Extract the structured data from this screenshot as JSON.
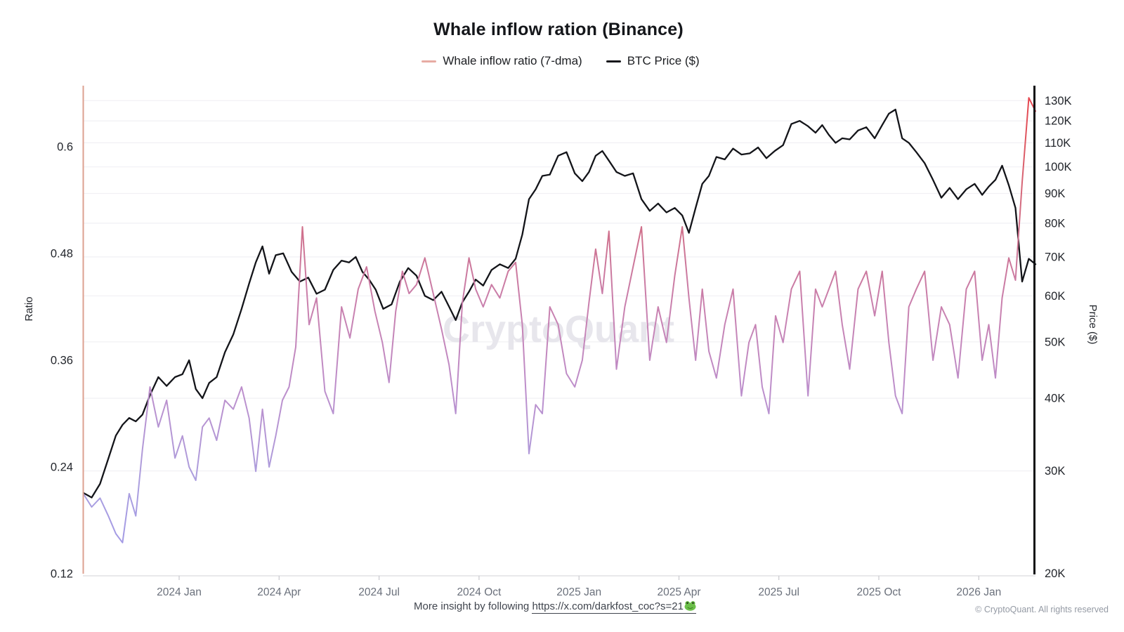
{
  "title": {
    "text": "Whale inflow ration (Binance)"
  },
  "legend": {
    "items": [
      {
        "label": "Whale inflow ratio (7-dma)",
        "color": "#e7aba3"
      },
      {
        "label": "BTC Price ($)",
        "color": "#16171b"
      }
    ]
  },
  "watermark": {
    "text": "CryptoQuant",
    "color": "#e7e6ec"
  },
  "footer": {
    "prefix": "More insight by following ",
    "link": "https://x.com/darkfost_coc?s=21",
    "link_icon": "frog-emoji",
    "copyright": "© CryptoQuant. All rights reserved"
  },
  "colors": {
    "grid": "#f1f0f4",
    "left_axis_line": "#dda190",
    "right_axis_line": "#101114",
    "bottom_axis_line": "#d9d9de",
    "tick_mark": "#c9c9ce",
    "y_tick_text": "#23262c",
    "x_tick_text": "#6a707b",
    "axis_title_text": "#23262c"
  },
  "chart_data": {
    "type": "line",
    "title": "Whale inflow ration (Binance)",
    "grid": "horizontal-only",
    "x_axis": {
      "start_month": "2023-10",
      "end_month": "2026-02",
      "tick_labels": [
        "2024 Jan",
        "2024 Apr",
        "2024 Jul",
        "2024 Oct",
        "2025 Jan",
        "2025 Apr",
        "2025 Jul",
        "2025 Oct",
        "2026 Jan"
      ]
    },
    "y_left": {
      "label": "Ratio",
      "scale": "linear",
      "range": [
        0.118,
        0.669
      ],
      "ticks": [
        {
          "label": "0.12",
          "value": 0.12
        },
        {
          "label": "0.24",
          "value": 0.24
        },
        {
          "label": "0.36",
          "value": 0.36
        },
        {
          "label": "0.48",
          "value": 0.48
        },
        {
          "label": "0.6",
          "value": 0.6
        }
      ]
    },
    "y_right": {
      "label": "Price ($)",
      "scale": "log",
      "range": [
        19.8,
        138
      ],
      "unit": "K",
      "ticks": [
        {
          "label": "20K",
          "value": 20
        },
        {
          "label": "30K",
          "value": 30
        },
        {
          "label": "40K",
          "value": 40
        },
        {
          "label": "50K",
          "value": 50
        },
        {
          "label": "60K",
          "value": 60
        },
        {
          "label": "70K",
          "value": 70
        },
        {
          "label": "80K",
          "value": 80
        },
        {
          "label": "90K",
          "value": 90
        },
        {
          "label": "100K",
          "value": 100
        },
        {
          "label": "110K",
          "value": 110
        },
        {
          "label": "120K",
          "value": 120
        },
        {
          "label": "130K",
          "value": 130
        }
      ]
    },
    "series": [
      {
        "name": "Whale inflow ratio (7-dma)",
        "axis": "left",
        "style": "gradient-by-value",
        "gradient": [
          {
            "v": 0.118,
            "c": "#9f98e8"
          },
          {
            "v": 0.22,
            "c": "#ab9fdf"
          },
          {
            "v": 0.33,
            "c": "#bd8ecb"
          },
          {
            "v": 0.42,
            "c": "#c980ae"
          },
          {
            "v": 0.48,
            "c": "#cd7596"
          },
          {
            "v": 0.54,
            "c": "#d46a7e"
          },
          {
            "v": 0.6,
            "c": "#dd5a64"
          },
          {
            "v": 0.67,
            "c": "#e84049"
          }
        ],
        "monthly_values": [
          [
            0.21,
            0.195,
            0.205,
            0.185
          ],
          [
            0.165,
            0.155,
            0.21,
            0.185,
            0.26
          ],
          [
            0.33,
            0.285,
            0.315,
            0.25
          ],
          [
            0.275,
            0.24,
            0.225,
            0.285,
            0.295
          ],
          [
            0.27,
            0.315,
            0.305,
            0.33
          ],
          [
            0.295,
            0.235,
            0.305,
            0.24,
            0.275
          ],
          [
            0.315,
            0.33,
            0.375,
            0.51,
            0.4
          ],
          [
            0.43,
            0.325,
            0.3,
            0.42
          ],
          [
            0.385,
            0.44,
            0.465,
            0.415
          ],
          [
            0.38,
            0.335,
            0.415,
            0.46,
            0.435
          ],
          [
            0.445,
            0.475,
            0.435,
            0.395
          ],
          [
            0.355,
            0.3,
            0.425,
            0.475,
            0.44
          ],
          [
            0.42,
            0.445,
            0.43,
            0.46
          ],
          [
            0.47,
            0.4,
            0.255,
            0.31,
            0.3
          ],
          [
            0.42,
            0.4,
            0.345,
            0.33
          ],
          [
            0.36,
            0.425,
            0.485,
            0.435,
            0.505
          ],
          [
            0.35,
            0.42,
            0.465,
            0.51
          ],
          [
            0.36,
            0.42,
            0.38,
            0.455
          ],
          [
            0.51,
            0.43,
            0.36,
            0.44,
            0.37
          ],
          [
            0.34,
            0.4,
            0.44,
            0.32
          ],
          [
            0.38,
            0.4,
            0.33,
            0.3,
            0.41
          ],
          [
            0.38,
            0.44,
            0.46,
            0.32
          ],
          [
            0.44,
            0.42,
            0.44,
            0.46,
            0.4
          ],
          [
            0.35,
            0.44,
            0.46,
            0.41
          ],
          [
            0.46,
            0.38,
            0.32,
            0.3,
            0.42
          ],
          [
            0.44,
            0.46,
            0.36,
            0.42
          ],
          [
            0.4,
            0.34,
            0.44,
            0.46
          ],
          [
            0.36,
            0.4,
            0.34,
            0.43,
            0.475
          ],
          [
            0.45,
            0.56,
            0.655,
            0.64,
            null
          ]
        ]
      },
      {
        "name": "BTC Price ($)",
        "axis": "right",
        "color": "#131419",
        "monthly_values": [
          [
            27.5,
            27.0,
            28.5,
            31.5
          ],
          [
            34.5,
            36.0,
            37.0,
            36.5,
            37.5
          ],
          [
            40.5,
            43.5,
            42.0,
            43.5
          ],
          [
            44.0,
            46.5,
            41.5,
            40.0,
            42.5
          ],
          [
            43.5,
            48.0,
            51.5,
            57.0
          ],
          [
            63.0,
            68.5,
            73.0,
            65.5,
            70.5
          ],
          [
            71.0,
            66.0,
            63.5,
            64.5
          ],
          [
            60.5,
            61.5,
            66.5,
            69.0
          ],
          [
            68.5,
            70.0,
            66.0,
            64.0,
            61.5
          ],
          [
            57.0,
            58.0,
            63.5,
            67.0
          ],
          [
            65.0,
            60.0,
            59.0,
            61.0
          ],
          [
            57.5,
            54.5,
            58.5,
            61.0,
            64.0
          ],
          [
            62.5,
            66.5,
            68.0,
            67.0
          ],
          [
            69.5,
            76.5,
            88.0,
            91.5,
            96.5
          ],
          [
            97.0,
            104.5,
            106.0,
            97.5
          ],
          [
            94.5,
            98.0,
            104.5,
            106.5,
            102.5
          ],
          [
            98.0,
            96.5,
            97.5,
            88.0
          ],
          [
            84.0,
            86.5,
            83.5,
            85.0
          ],
          [
            82.5,
            77.0,
            85.0,
            93.5,
            96.5
          ],
          [
            104.0,
            103.0,
            107.5,
            105.0
          ],
          [
            105.5,
            108.0,
            103.5,
            106.5
          ],
          [
            109.0,
            118.5,
            120.0,
            117.5
          ],
          [
            114.5,
            118.0,
            113.5,
            110.0,
            112.0
          ],
          [
            111.5,
            115.5,
            117.0,
            112.0
          ],
          [
            118.0,
            123.5,
            125.5,
            112.0,
            110.0
          ],
          [
            106.0,
            101.5,
            95.0,
            88.5
          ],
          [
            92.0,
            88.0,
            91.5,
            93.5
          ],
          [
            89.5,
            92.5,
            95.0,
            100.5,
            93.0
          ],
          [
            85.0,
            63.5,
            69.5,
            68.0,
            null
          ]
        ]
      }
    ]
  }
}
